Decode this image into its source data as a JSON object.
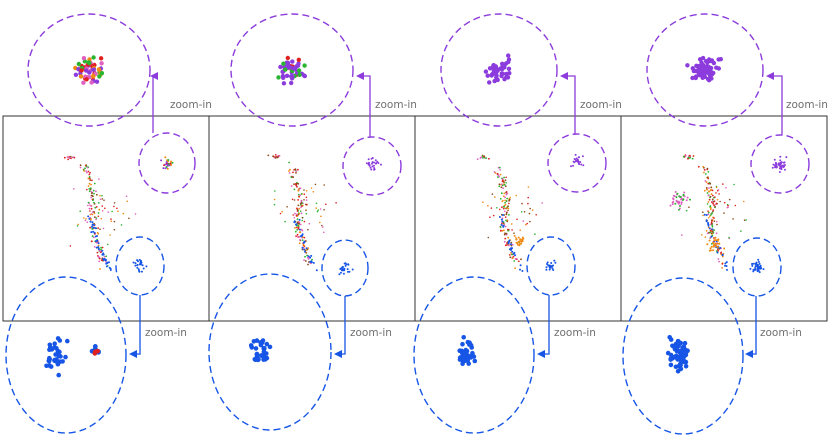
{
  "zoom_label": "zoom-in",
  "colors": {
    "purple": "#8c3cdc",
    "blue": "#1655e6",
    "red": "#e02020",
    "green": "#2ab530",
    "orange": "#f08a10",
    "pink": "#e060c0",
    "brown": "#8b4a1a",
    "frame": "#333333",
    "label": "#6f6f6f"
  },
  "panels": [
    {
      "name": "panel-1"
    },
    {
      "name": "panel-2"
    },
    {
      "name": "panel-3"
    },
    {
      "name": "panel-4"
    }
  ]
}
